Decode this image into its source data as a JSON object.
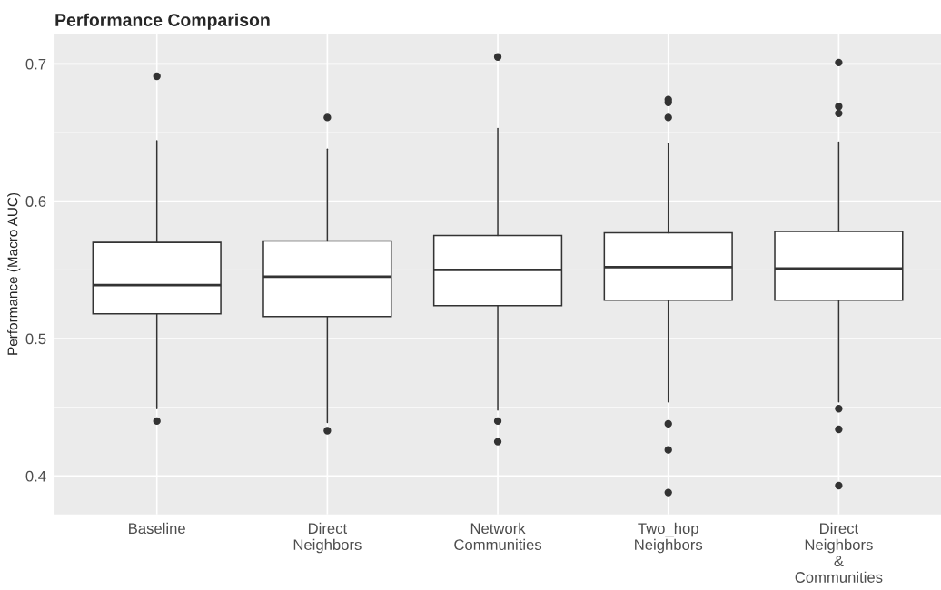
{
  "chart_data": {
    "type": "box",
    "title": "Performance Comparison",
    "ylabel": "Performance (Macro AUC)",
    "categories": [
      "Baseline",
      "Direct\nNeighbors",
      "Network\nCommunities",
      "Two_hop\nNeighbors",
      "Direct\nNeighbors\n&\nCommunities"
    ],
    "boxes": [
      {
        "low": 0.449,
        "q1": 0.518,
        "median": 0.539,
        "q3": 0.57,
        "high": 0.644,
        "outliers": [
          0.691,
          0.44
        ]
      },
      {
        "low": 0.439,
        "q1": 0.516,
        "median": 0.545,
        "q3": 0.571,
        "high": 0.638,
        "outliers": [
          0.661,
          0.433
        ]
      },
      {
        "low": 0.448,
        "q1": 0.524,
        "median": 0.55,
        "q3": 0.575,
        "high": 0.653,
        "outliers": [
          0.705,
          0.44,
          0.425
        ]
      },
      {
        "low": 0.454,
        "q1": 0.528,
        "median": 0.552,
        "q3": 0.577,
        "high": 0.642,
        "outliers": [
          0.674,
          0.672,
          0.661,
          0.438,
          0.419,
          0.388
        ]
      },
      {
        "low": 0.454,
        "q1": 0.528,
        "median": 0.551,
        "q3": 0.578,
        "high": 0.643,
        "outliers": [
          0.701,
          0.669,
          0.664,
          0.449,
          0.434,
          0.393
        ]
      }
    ],
    "ylim": [
      0.372,
      0.722
    ],
    "yticks": [
      0.4,
      0.5,
      0.6,
      0.7
    ],
    "grid": true,
    "legend": false
  }
}
